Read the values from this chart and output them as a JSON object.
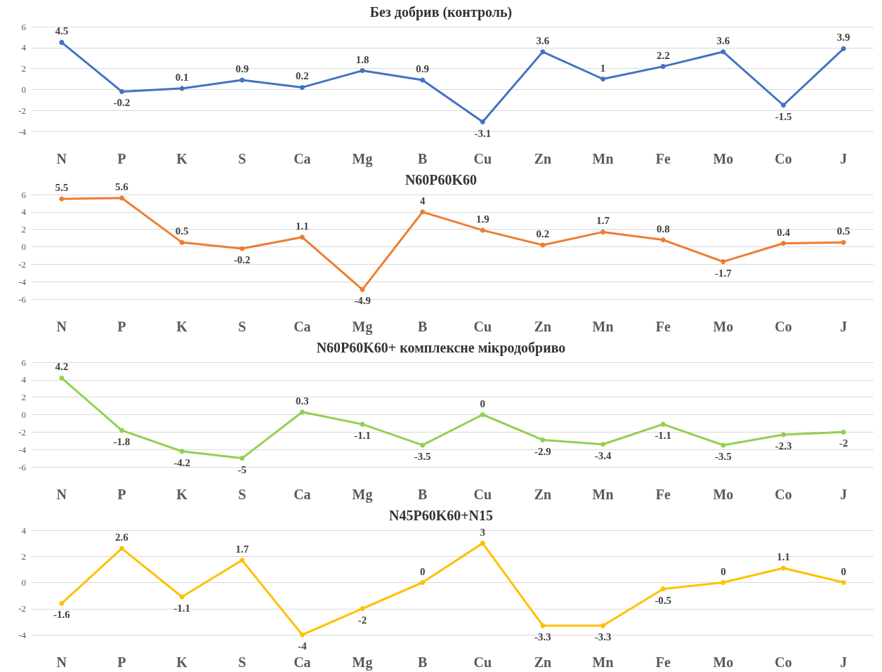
{
  "chart_data": [
    {
      "type": "line",
      "title": "Без добрив (контроль)",
      "categories": [
        "N",
        "P",
        "K",
        "S",
        "Ca",
        "Mg",
        "B",
        "Cu",
        "Zn",
        "Mn",
        "Fe",
        "Mo",
        "Co",
        "J"
      ],
      "series": [
        {
          "color": "#4472c4",
          "values": [
            4.5,
            -0.2,
            0.1,
            0.9,
            0.2,
            1.8,
            0.9,
            -3.1,
            3.6,
            1,
            2.2,
            3.6,
            -1.5,
            3.9
          ]
        }
      ],
      "ylim": [
        -4,
        6
      ],
      "yticks": [
        -4,
        -2,
        0,
        2,
        4,
        6
      ],
      "grid": "y",
      "data_labels": true,
      "marker": "circle"
    },
    {
      "type": "line",
      "title": "N60P60K60",
      "categories": [
        "N",
        "P",
        "K",
        "S",
        "Ca",
        "Mg",
        "B",
        "Cu",
        "Zn",
        "Mn",
        "Fe",
        "Mo",
        "Co",
        "J"
      ],
      "series": [
        {
          "color": "#ed7d31",
          "values": [
            5.5,
            5.6,
            0.5,
            -0.2,
            1.1,
            -4.9,
            4,
            1.9,
            0.2,
            1.7,
            0.8,
            -1.7,
            0.4,
            0.5
          ]
        }
      ],
      "ylim": [
        -6,
        6
      ],
      "yticks": [
        -6,
        -4,
        -2,
        0,
        2,
        4,
        6
      ],
      "grid": "y",
      "data_labels": true,
      "marker": "circle"
    },
    {
      "type": "line",
      "title": "N60P60K60+ комплексне мікродобриво",
      "categories": [
        "N",
        "P",
        "K",
        "S",
        "Ca",
        "Mg",
        "B",
        "Cu",
        "Zn",
        "Mn",
        "Fe",
        "Mo",
        "Co",
        "J"
      ],
      "series": [
        {
          "color": "#92d050",
          "values": [
            4.2,
            -1.8,
            -4.2,
            -5,
            0.3,
            -1.1,
            -3.5,
            0,
            -2.9,
            -3.4,
            -1.1,
            -3.5,
            -2.3,
            -2
          ]
        }
      ],
      "ylim": [
        -6,
        6
      ],
      "yticks": [
        -6,
        -4,
        -2,
        0,
        2,
        4,
        6
      ],
      "grid": "y",
      "data_labels": true,
      "marker": "circle"
    },
    {
      "type": "line",
      "title": "N45P60K60+N15",
      "categories": [
        "N",
        "P",
        "K",
        "S",
        "Ca",
        "Mg",
        "B",
        "Cu",
        "Zn",
        "Mn",
        "Fe",
        "Mo",
        "Co",
        "J"
      ],
      "series": [
        {
          "color": "#ffc000",
          "values": [
            -1.6,
            2.6,
            -1.1,
            1.7,
            -4,
            -2,
            0,
            3,
            -3.3,
            -3.3,
            -0.5,
            0,
            1.1,
            0
          ]
        }
      ],
      "ylim": [
        -4,
        4
      ],
      "yticks": [
        -4,
        -2,
        0,
        2,
        4
      ],
      "grid": "y",
      "data_labels": true,
      "marker": "circle"
    }
  ]
}
